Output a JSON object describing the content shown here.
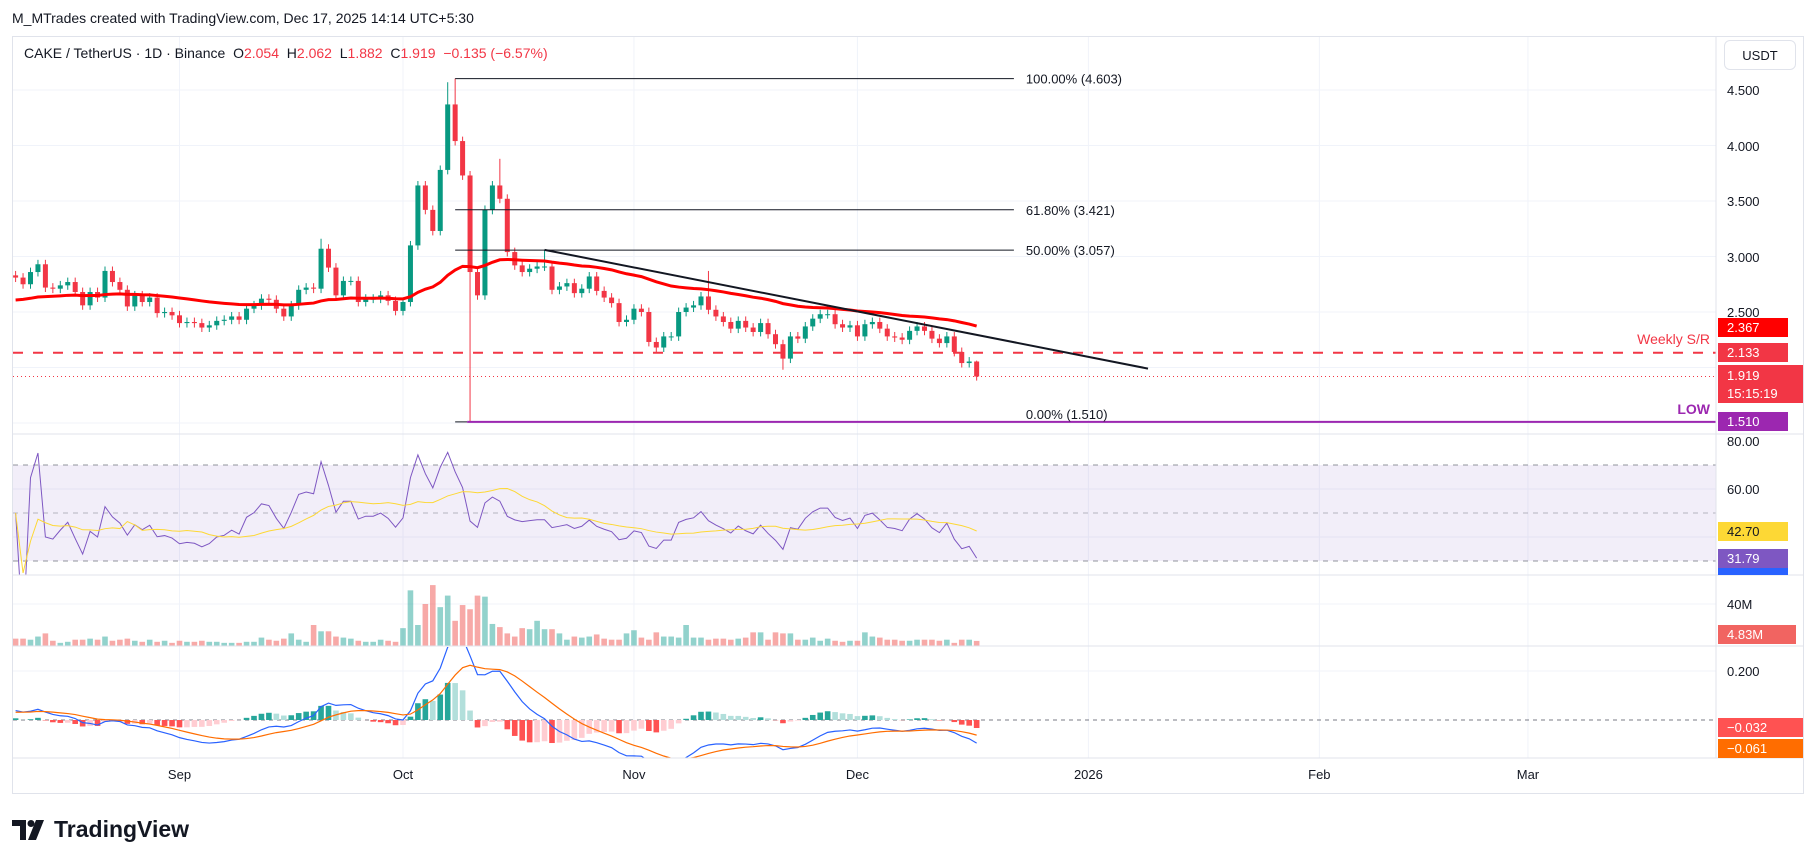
{
  "header": {
    "credit": "M_MTrades created with TradingView.com, Dec 17, 2025 14:14 UTC+5:30"
  },
  "legend": {
    "symbol": "CAKE / TetherUS · 1D · Binance",
    "open_label": "O",
    "open": "2.054",
    "high_label": "H",
    "high": "2.062",
    "low_label": "L",
    "low": "1.882",
    "close_label": "C",
    "close": "1.919",
    "change": "−0.135 (−6.57%)"
  },
  "price_axis": {
    "currency_button": "USDT",
    "ticks": [
      "4.500",
      "4.000",
      "3.500",
      "3.000",
      "2.500"
    ],
    "tags": {
      "ma": "2.367",
      "weekly_sr": "2.133",
      "last_price": "1.919",
      "countdown": "15:15:19",
      "low": "1.510"
    }
  },
  "annotations": {
    "weekly_sr_label": "Weekly S/R",
    "low_label": "LOW",
    "fib": [
      {
        "label": "100.00% (4.603)",
        "price": 4.603
      },
      {
        "label": "61.80% (3.421)",
        "price": 3.421
      },
      {
        "label": "50.00% (3.057)",
        "price": 3.057
      },
      {
        "label": "0.00% (1.510)",
        "price": 1.51
      }
    ],
    "fib_start_date": "2025-10-08",
    "fib_end_date": "2025-12-22",
    "trendline": [
      {
        "date": "2025-10-20",
        "price": 3.06
      },
      {
        "date": "2026-01-09",
        "price": 1.99
      }
    ],
    "weekly_sr_price": 2.133,
    "low_price": 1.51
  },
  "rsi_pane": {
    "ticks": [
      "80.00",
      "60.00"
    ],
    "rsi_ma_value": "42.70",
    "rsi_value": "31.79",
    "levels": [
      70,
      50,
      30
    ]
  },
  "volume_pane": {
    "ticks": [
      "40M"
    ],
    "value": "4.83M"
  },
  "macd_pane": {
    "ticks": [
      "0.200"
    ],
    "histogram_value": "−0.032",
    "signal_value": "−0.061"
  },
  "time_axis": [
    {
      "label": "Sep",
      "date": "2025-09-01"
    },
    {
      "label": "Oct",
      "date": "2025-10-01"
    },
    {
      "label": "Nov",
      "date": "2025-11-01"
    },
    {
      "label": "Dec",
      "date": "2025-12-01"
    },
    {
      "label": "2026",
      "date": "2026-01-01"
    },
    {
      "label": "Feb",
      "date": "2026-02-01"
    },
    {
      "label": "Mar",
      "date": "2026-03-01"
    }
  ],
  "logo": {
    "text": "TradingView"
  },
  "colors": {
    "up": "#089981",
    "down": "#f23645",
    "ma": "#ff0000",
    "low": "#9c27b0",
    "rsi": "#7e57c2",
    "rsi_ma": "#fdd835",
    "macd": "#2962ff",
    "signal": "#ff6d00"
  },
  "chart_data": {
    "type": "candlestick",
    "first_date": "2025-08-10",
    "close": [
      2.81,
      2.75,
      2.86,
      2.93,
      2.72,
      2.71,
      2.74,
      2.77,
      2.68,
      2.56,
      2.68,
      2.63,
      2.87,
      2.77,
      2.7,
      2.55,
      2.65,
      2.59,
      2.63,
      2.49,
      2.5,
      2.47,
      2.4,
      2.41,
      2.4,
      2.36,
      2.38,
      2.42,
      2.43,
      2.46,
      2.43,
      2.53,
      2.56,
      2.62,
      2.61,
      2.53,
      2.46,
      2.56,
      2.7,
      2.72,
      2.71,
      3.07,
      2.9,
      2.65,
      2.78,
      2.78,
      2.59,
      2.62,
      2.62,
      2.65,
      2.6,
      2.51,
      2.59,
      3.1,
      3.64,
      3.42,
      3.23,
      3.78,
      4.37,
      4.04,
      3.73,
      2.86,
      2.65,
      3.42,
      3.64,
      3.52,
      3.04,
      2.92,
      2.86,
      2.89,
      2.91,
      2.91,
      2.7,
      2.73,
      2.76,
      2.67,
      2.71,
      2.82,
      2.69,
      2.63,
      2.58,
      2.41,
      2.43,
      2.53,
      2.5,
      2.23,
      2.18,
      2.28,
      2.28,
      2.5,
      2.54,
      2.56,
      2.64,
      2.52,
      2.46,
      2.41,
      2.35,
      2.42,
      2.36,
      2.32,
      2.4,
      2.3,
      2.21,
      2.08,
      2.28,
      2.26,
      2.37,
      2.44,
      2.48,
      2.48,
      2.39,
      2.36,
      2.38,
      2.28,
      2.39,
      2.41,
      2.35,
      2.28,
      2.27,
      2.25,
      2.33,
      2.37,
      2.33,
      2.26,
      2.22,
      2.28,
      2.14,
      2.04,
      2.054,
      1.919
    ],
    "extremes": [
      {
        "date": "2025-09-20",
        "high": 3.16
      },
      {
        "date": "2025-10-07",
        "high": 4.57
      },
      {
        "date": "2025-10-08",
        "high": 4.603
      },
      {
        "date": "2025-10-10",
        "low": 1.51
      },
      {
        "date": "2025-10-14",
        "high": 3.88
      },
      {
        "date": "2025-10-20",
        "high": 3.06
      },
      {
        "date": "2025-11-11",
        "high": 2.87
      },
      {
        "date": "2025-11-21",
        "low": 1.98
      },
      {
        "date": "2025-12-17",
        "high": 2.062,
        "low": 1.882
      }
    ],
    "volume_millions": [
      7,
      7,
      6,
      9,
      12,
      5,
      3,
      4,
      6,
      6,
      7,
      6,
      9,
      5,
      6,
      7,
      5,
      4,
      6,
      4,
      5,
      3,
      5,
      4,
      4,
      5,
      4,
      4,
      3,
      3,
      3,
      4,
      4,
      8,
      6,
      5,
      7,
      12,
      6,
      4,
      20,
      14,
      14,
      9,
      8,
      7,
      5,
      4,
      4,
      6,
      5,
      4,
      17,
      53,
      20,
      40,
      58,
      37,
      48,
      24,
      39,
      35,
      48,
      47,
      21,
      18,
      12,
      9,
      17,
      16,
      24,
      16,
      16,
      12,
      6,
      9,
      8,
      9,
      11,
      7,
      6,
      6,
      12,
      15,
      8,
      6,
      13,
      9,
      9,
      8,
      20,
      8,
      8,
      6,
      7,
      7,
      6,
      7,
      8,
      13,
      13,
      6,
      13,
      12,
      12,
      6,
      6,
      8,
      5,
      7,
      5,
      4,
      5,
      5,
      13,
      9,
      8,
      6,
      6,
      5,
      5,
      6,
      6,
      6,
      5,
      6,
      3,
      6,
      6,
      4.83
    ],
    "ylim_price": [
      1.4,
      4.8
    ],
    "ylim_rsi": [
      20,
      80
    ],
    "grid": true
  }
}
